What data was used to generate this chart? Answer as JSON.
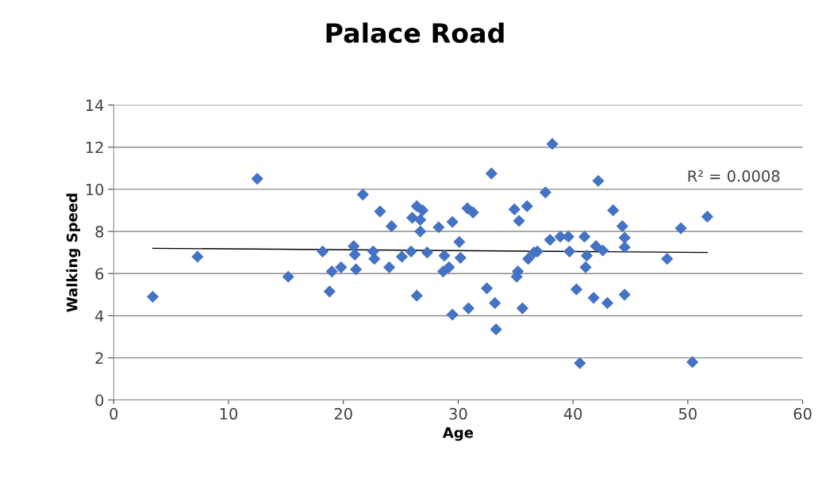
{
  "chart_data": {
    "type": "scatter",
    "title": "Palace Road",
    "xlabel": "Age",
    "ylabel": "Walking Speed",
    "annotations": [
      "R² = 0.0008"
    ],
    "xlim": [
      0,
      60
    ],
    "xticks": [
      0,
      10,
      20,
      30,
      40,
      50,
      60
    ],
    "ylim": [
      0,
      14
    ],
    "yticks": [
      0,
      2,
      4,
      6,
      8,
      10,
      12,
      14
    ],
    "grid": "y",
    "series": [
      {
        "color": "#4472c4",
        "marker": "diamond",
        "x": [
          3.4,
          7.3,
          12.5,
          15.2,
          18.2,
          18.8,
          19.0,
          19.8,
          20.9,
          21.0,
          21.1,
          21.7,
          22.6,
          22.7,
          23.2,
          24.0,
          24.2,
          25.1,
          25.9,
          26.0,
          26.4,
          26.4,
          26.7,
          26.7,
          26.9,
          27.3,
          28.3,
          28.7,
          28.8,
          29.2,
          29.5,
          29.5,
          30.1,
          30.2,
          30.8,
          30.9,
          31.3,
          32.5,
          32.9,
          33.2,
          33.3,
          34.9,
          35.1,
          35.2,
          35.3,
          35.6,
          36.0,
          36.1,
          36.6,
          36.9,
          37.6,
          38.0,
          38.2,
          38.9,
          39.6,
          39.7,
          40.3,
          40.6,
          41.0,
          41.1,
          41.2,
          41.8,
          42.0,
          42.2,
          42.6,
          43.0,
          43.5,
          44.3,
          44.5,
          44.5,
          44.5,
          48.2,
          49.4,
          50.4,
          51.7
        ],
        "values": [
          4.9,
          6.8,
          10.5,
          5.85,
          7.05,
          5.15,
          6.1,
          6.3,
          7.3,
          6.9,
          6.2,
          9.75,
          7.05,
          6.7,
          8.95,
          6.3,
          8.25,
          6.8,
          7.05,
          8.65,
          9.2,
          4.95,
          8.55,
          8.0,
          9.0,
          7.0,
          8.2,
          6.1,
          6.85,
          6.3,
          8.45,
          4.05,
          7.5,
          6.75,
          9.1,
          4.35,
          8.9,
          5.3,
          10.75,
          4.6,
          3.35,
          9.05,
          5.85,
          6.1,
          8.5,
          4.35,
          9.2,
          6.7,
          7.0,
          7.05,
          9.85,
          7.6,
          12.15,
          7.75,
          7.75,
          7.05,
          5.25,
          1.75,
          7.75,
          6.3,
          6.85,
          4.85,
          7.3,
          10.4,
          7.1,
          4.6,
          9.0,
          8.25,
          7.7,
          7.25,
          5.0,
          6.7,
          8.15,
          1.8,
          8.7
        ]
      },
      {
        "type": "line",
        "color": "#000000",
        "x": [
          3.4,
          51.7
        ],
        "values": [
          7.2,
          7.0
        ]
      }
    ]
  }
}
